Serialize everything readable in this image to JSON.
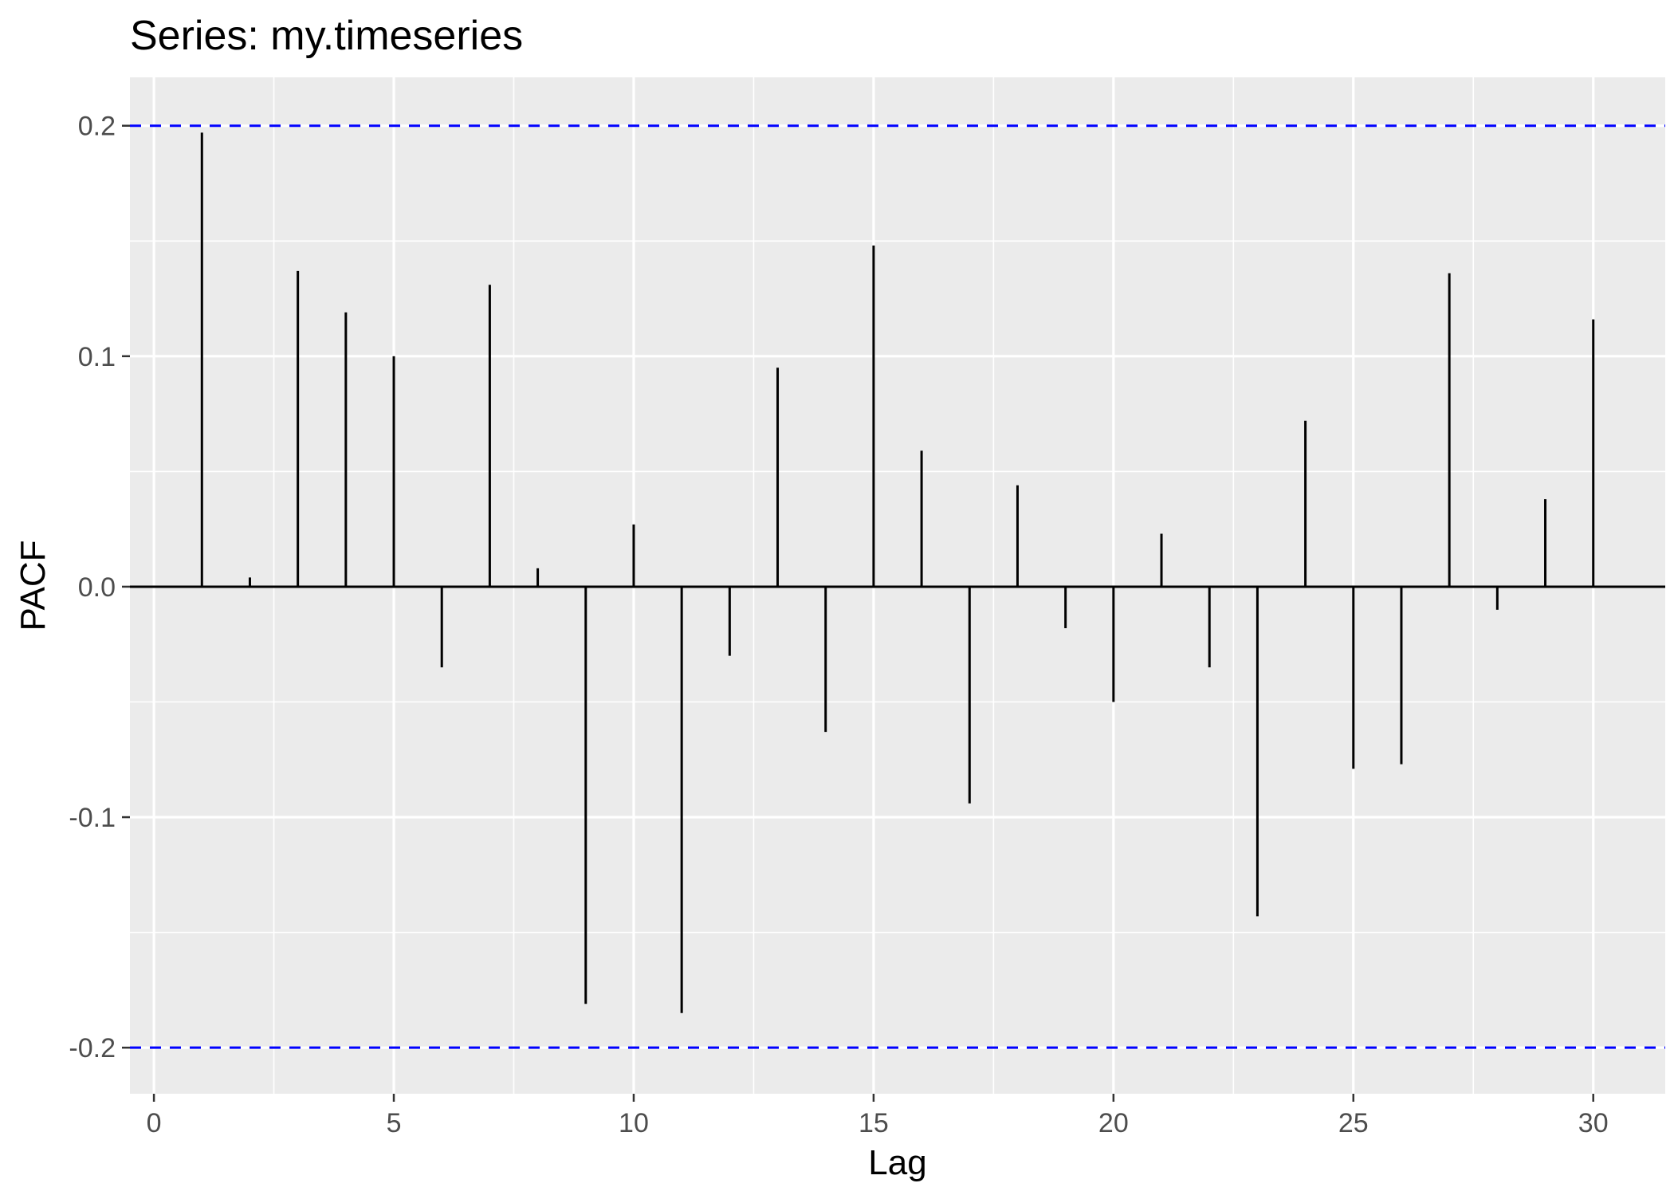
{
  "chart_data": {
    "type": "bar",
    "title": "Series: my.timeseries",
    "xlabel": "Lag",
    "ylabel": "PACF",
    "xlim": [
      -0.5,
      31.5
    ],
    "ylim": [
      -0.22,
      0.221
    ],
    "x_ticks": [
      0,
      5,
      10,
      15,
      20,
      25,
      30
    ],
    "x_tick_labels": [
      "0",
      "5",
      "10",
      "15",
      "20",
      "25",
      "30"
    ],
    "y_ticks": [
      -0.2,
      -0.1,
      0.0,
      0.1,
      0.2
    ],
    "y_tick_labels": [
      "-0.2",
      "-0.1",
      "0.0",
      "0.1",
      "0.2"
    ],
    "grid": true,
    "confidence_bounds": [
      0.2,
      -0.2
    ],
    "colors": {
      "panel": "#ebebeb",
      "grid": "#ffffff",
      "bars": "#000000",
      "bounds": "#0000ff",
      "zero_line": "#000000",
      "tick_marks": "#333333"
    },
    "series": [
      {
        "lags": [
          1,
          2,
          3,
          4,
          5,
          6,
          7,
          8,
          9,
          10,
          11,
          12,
          13,
          14,
          15,
          16,
          17,
          18,
          19,
          20,
          21,
          22,
          23,
          24,
          25,
          26,
          27,
          28,
          29,
          30
        ],
        "values": [
          0.197,
          0.004,
          0.137,
          0.119,
          0.1,
          -0.035,
          0.131,
          0.008,
          -0.181,
          0.027,
          -0.185,
          -0.03,
          0.095,
          -0.063,
          0.148,
          0.059,
          -0.094,
          0.044,
          -0.018,
          -0.05,
          0.023,
          -0.035,
          -0.143,
          0.072,
          -0.079,
          -0.077,
          0.136,
          -0.01,
          0.038,
          0.116
        ]
      }
    ]
  }
}
